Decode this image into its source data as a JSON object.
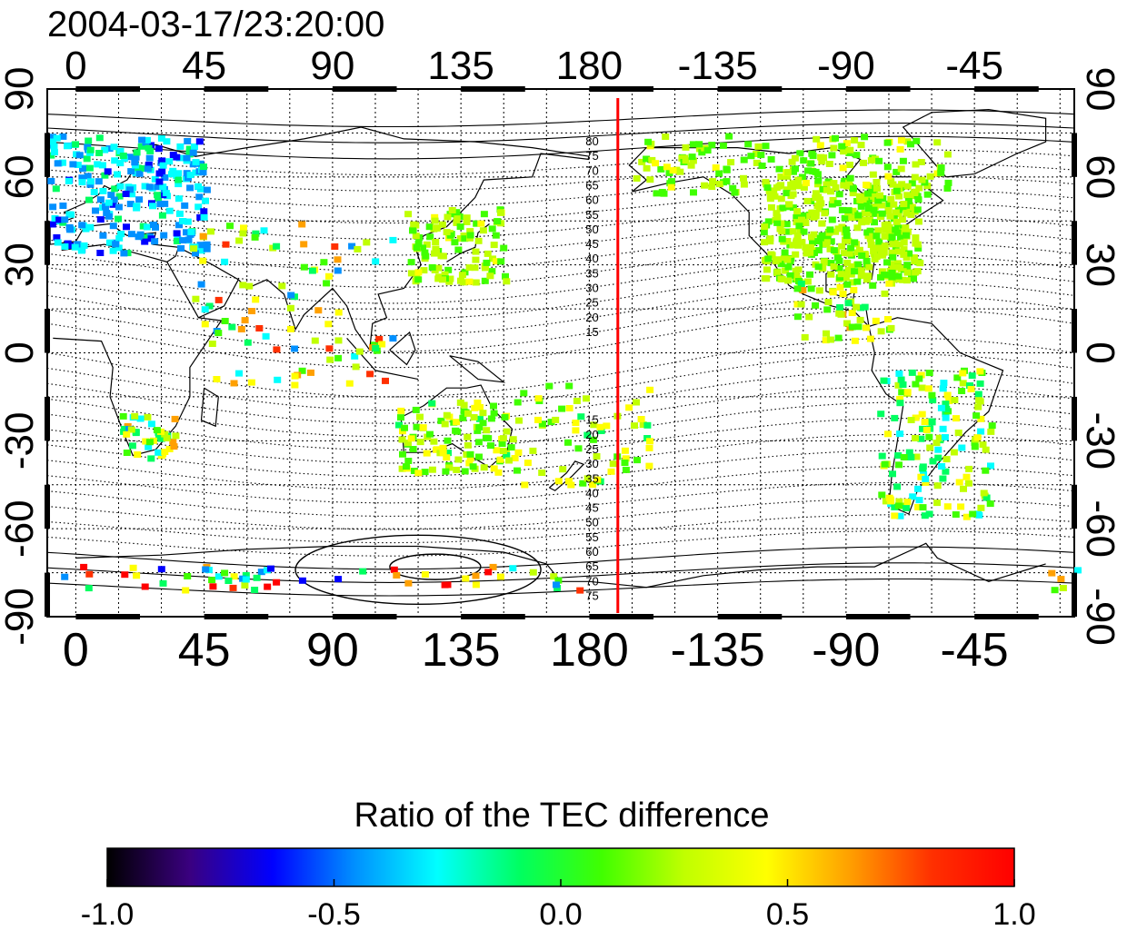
{
  "timestamp": "2004-03-17/23:20:00",
  "colorbar": {
    "title": "Ratio of the TEC difference",
    "ticks": [
      "-1.0",
      "-0.5",
      "0.0",
      "0.5",
      "1.0"
    ],
    "colors": [
      "#000000",
      "#3a0080",
      "#0000ff",
      "#0090ff",
      "#00ffff",
      "#00ff60",
      "#40ff00",
      "#c0ff00",
      "#ffff00",
      "#ffa000",
      "#ff3000",
      "#ff0000"
    ]
  },
  "axes": {
    "top_lon": [
      "0",
      "45",
      "90",
      "135",
      "180",
      "-135",
      "-90",
      "-45"
    ],
    "bottom_lon": [
      "0",
      "45",
      "90",
      "135",
      "180",
      "-135",
      "-90",
      "-45"
    ],
    "left_lat": [
      "90",
      "60",
      "30",
      "0",
      "-30",
      "-60",
      "-90"
    ],
    "right_lat": [
      "90",
      "60",
      "30",
      "0",
      "-30",
      "-60",
      "-90"
    ],
    "lon_range": [
      -10,
      350
    ],
    "lat_range": [
      -90,
      90
    ]
  },
  "contour_labels": {
    "north": [
      "80",
      "75",
      "70",
      "65",
      "60",
      "55",
      "50",
      "45",
      "40",
      "35",
      "30",
      "25",
      "20",
      "15"
    ],
    "south": [
      "15",
      "20",
      "25",
      "30",
      "35",
      "40",
      "45",
      "50",
      "55",
      "60",
      "65",
      "70",
      "75"
    ]
  },
  "marker_line": {
    "lon": 190,
    "color": "#ff0000"
  }
}
